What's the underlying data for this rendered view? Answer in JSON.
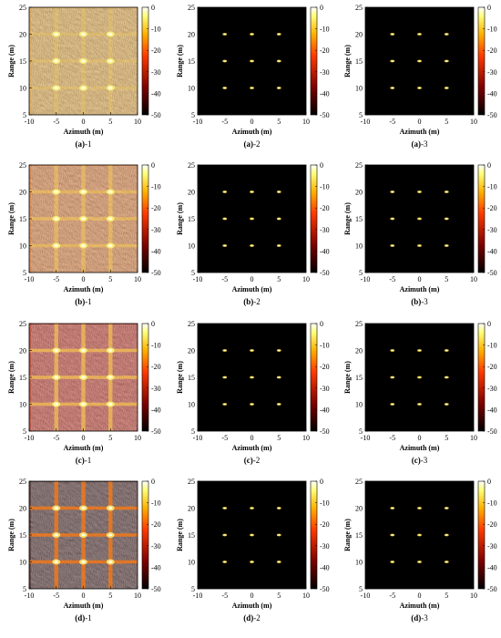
{
  "chart_data": {
    "type": "heatmap",
    "layout": "4 rows x 3 columns of SAR images",
    "xlabel": "Azimuth (m)",
    "ylabel": "Range (m)",
    "xlim": [
      -10,
      10
    ],
    "ylim": [
      5,
      25
    ],
    "x_ticks": [
      "-10",
      "-5",
      "0",
      "5",
      "10"
    ],
    "y_ticks": [
      "5",
      "10",
      "15",
      "20",
      "25"
    ],
    "colorbar": {
      "range": [
        -50,
        0
      ],
      "ticks": [
        "0",
        "-10",
        "-20",
        "-30",
        "-40",
        "-50"
      ]
    },
    "targets": {
      "azimuth": [
        -5,
        0,
        5
      ],
      "range": [
        10,
        15,
        20
      ]
    },
    "colors": {
      "low": "#000000",
      "mid1": "#7a0000",
      "mid2": "#ff3a00",
      "mid3": "#ffb000",
      "high": "#ffff7a",
      "top": "#ffffff"
    },
    "rows": [
      {
        "key": "a",
        "panels": [
          {
            "caption_letter": "(a)",
            "caption_suffix": "-1",
            "style": "noisy-yellow"
          },
          {
            "caption_letter": "(a)",
            "caption_suffix": "-2",
            "style": "focused"
          },
          {
            "caption_letter": "(a)",
            "caption_suffix": "-3",
            "style": "focused"
          }
        ]
      },
      {
        "key": "b",
        "panels": [
          {
            "caption_letter": "(b)",
            "caption_suffix": "-1",
            "style": "noisy-orange"
          },
          {
            "caption_letter": "(b)",
            "caption_suffix": "-2",
            "style": "focused"
          },
          {
            "caption_letter": "(b)",
            "caption_suffix": "-3",
            "style": "focused"
          }
        ]
      },
      {
        "key": "c",
        "panels": [
          {
            "caption_letter": "(c)",
            "caption_suffix": "-1",
            "style": "noisy-red"
          },
          {
            "caption_letter": "(c)",
            "caption_suffix": "-2",
            "style": "focused"
          },
          {
            "caption_letter": "(c)",
            "caption_suffix": "-3",
            "style": "focused"
          }
        ]
      },
      {
        "key": "d",
        "panels": [
          {
            "caption_letter": "(d)",
            "caption_suffix": "-1",
            "style": "noisy-dark"
          },
          {
            "caption_letter": "(d)",
            "caption_suffix": "-2",
            "style": "focused"
          },
          {
            "caption_letter": "(d)",
            "caption_suffix": "-3",
            "style": "focused"
          }
        ]
      }
    ]
  }
}
